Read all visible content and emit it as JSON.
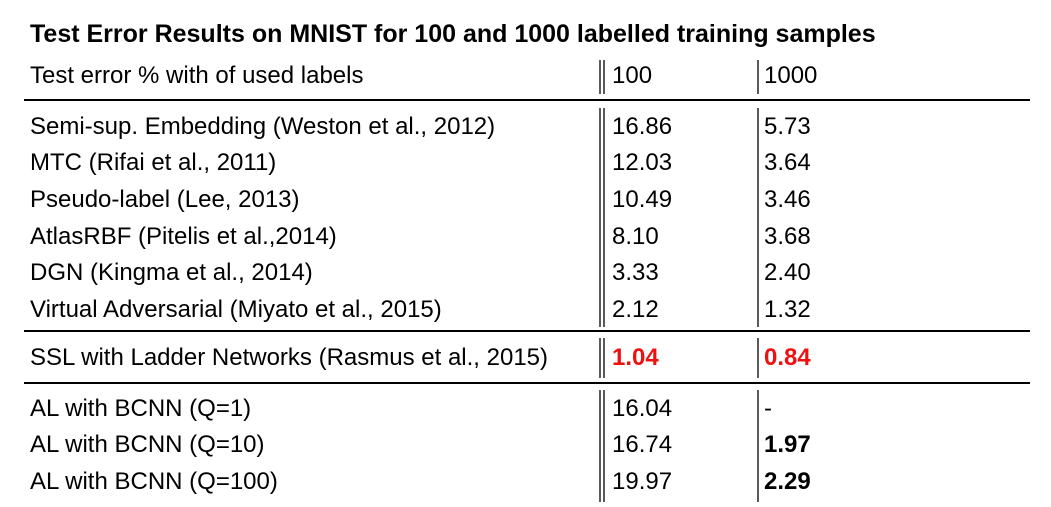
{
  "title": "Test Error Results on MNIST for 100 and 1000 labelled training samples",
  "table": {
    "header": [
      "Test error % with  of used labels",
      "100",
      "1000"
    ],
    "rows": [
      [
        "Semi-sup. Embedding (Weston et al., 2012)",
        "16.86",
        "5.73"
      ],
      [
        "MTC (Rifai et al., 2011)",
        "12.03",
        "3.64"
      ],
      [
        "Pseudo-label (Lee, 2013)",
        "10.49",
        "3.46"
      ],
      [
        "AtlasRBF (Pitelis et al.,2014)",
        "8.10",
        "3.68"
      ],
      [
        "DGN (Kingma et al., 2014)",
        "3.33",
        "2.40"
      ],
      [
        "Virtual Adversarial (Miyato et al., 2015)",
        "2.12",
        "1.32"
      ],
      [
        "SSL with Ladder Networks (Rasmus et al., 2015)",
        "1.04",
        "0.84"
      ],
      [
        "AL with BCNN (Q=1)",
        "16.04",
        "-"
      ],
      [
        "AL with BCNN (Q=10)",
        "16.74",
        "1.97"
      ],
      [
        "AL with BCNN (Q=100)",
        "19.97",
        "2.29"
      ]
    ]
  }
}
